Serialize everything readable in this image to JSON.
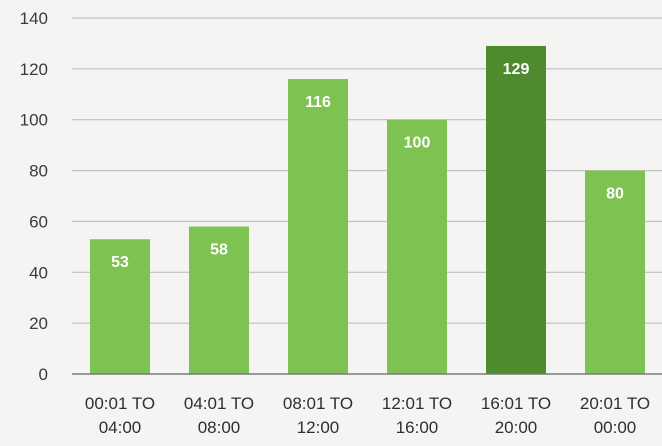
{
  "chart_data": {
    "type": "bar",
    "title": "",
    "xlabel": "",
    "ylabel": "",
    "categories": [
      [
        "00:01 TO",
        "04:00"
      ],
      [
        "04:01 TO",
        "08:00"
      ],
      [
        "08:01 TO",
        "12:00"
      ],
      [
        "12:01 TO",
        "16:00"
      ],
      [
        "16:01 TO",
        "20:00"
      ],
      [
        "20:01 TO",
        "00:00"
      ]
    ],
    "values": [
      53,
      58,
      116,
      100,
      129,
      80
    ],
    "data_labels": [
      "53",
      "58",
      "116",
      "100",
      "129",
      "80"
    ],
    "yticks": [
      0,
      20,
      40,
      60,
      80,
      100,
      120,
      140
    ],
    "ylim": [
      0,
      140
    ],
    "grid": true,
    "legend": "none",
    "colors": {
      "bar": "#7ec251",
      "highlight_bar": "#4e8a2e",
      "highlight_index": 4,
      "grid": "#b8b8b8"
    }
  }
}
